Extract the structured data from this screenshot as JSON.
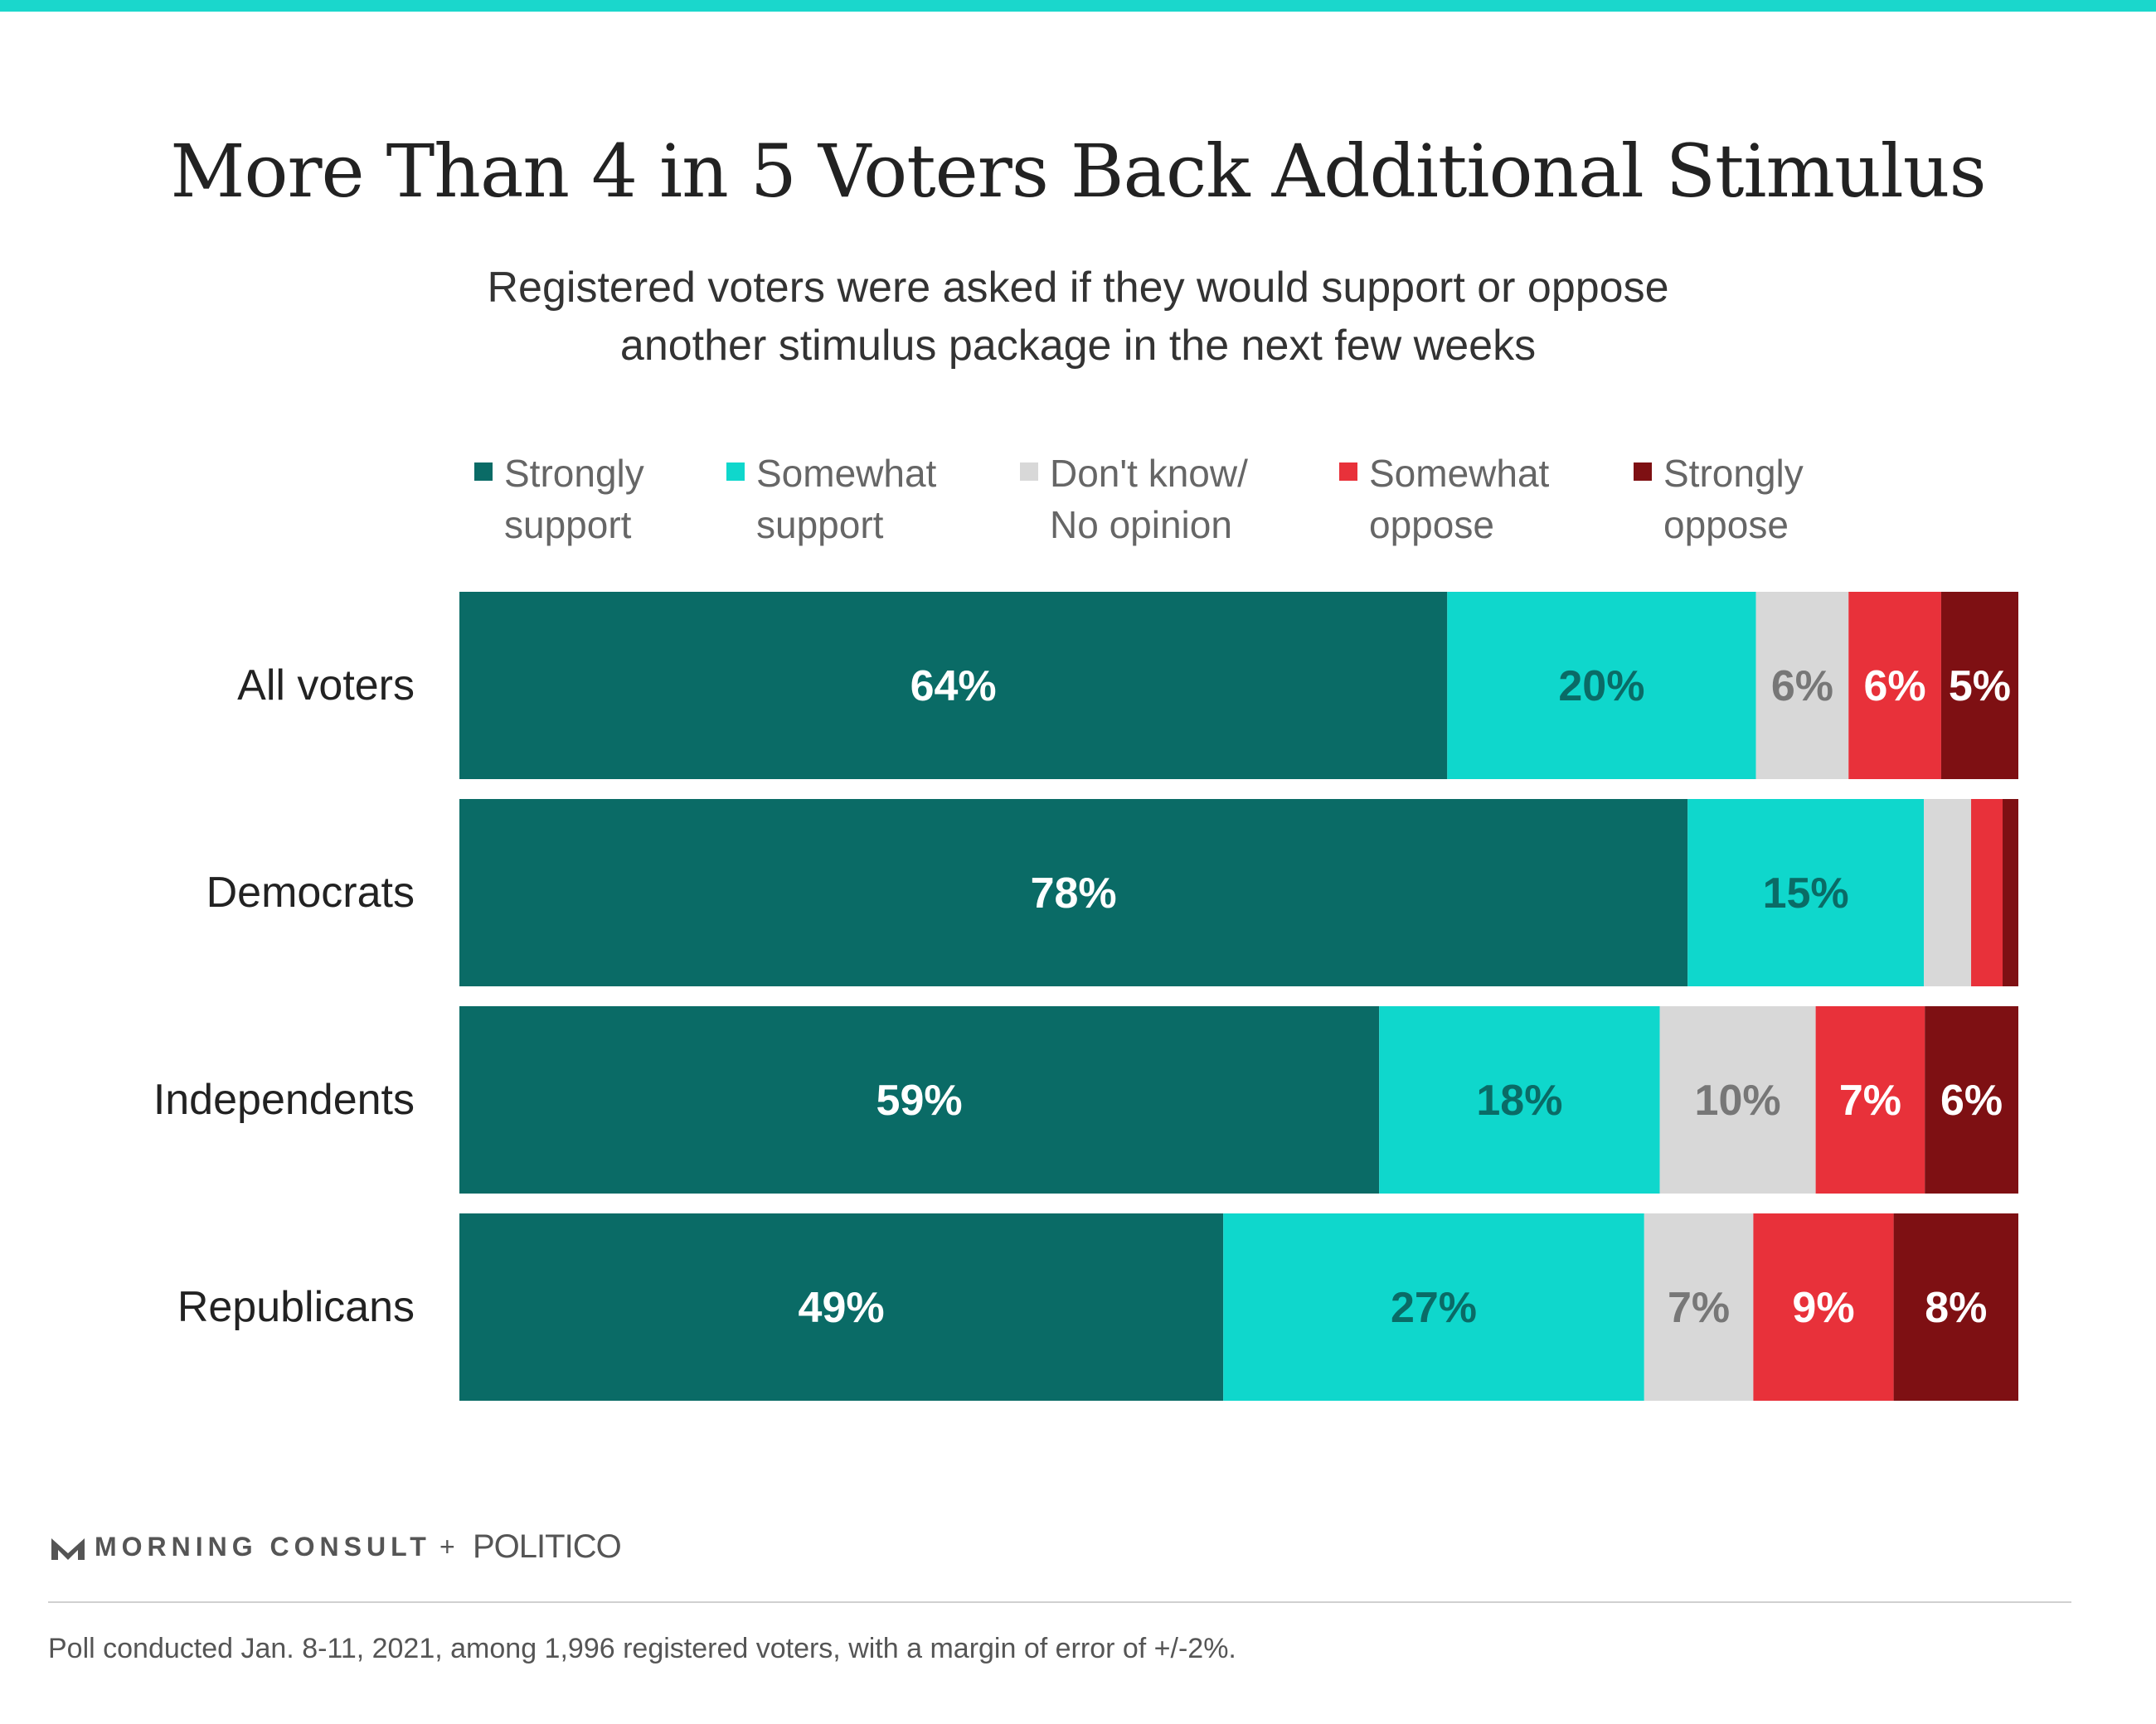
{
  "colors": {
    "top_bar": "#1ad7cc",
    "strongly_support": "#0a6b66",
    "somewhat_support": "#0fd7cc",
    "dont_know": "#d8d8d8",
    "somewhat_oppose": "#e8313a",
    "strongly_oppose": "#7e1013"
  },
  "title": "More Than 4 in 5 Voters Back Additional Stimulus",
  "subtitle": "Registered voters were asked if they would support or oppose\nanother stimulus package in the next few weeks",
  "legend": [
    {
      "label": "Strongly\nsupport",
      "color": "#0a6b66"
    },
    {
      "label": "Somewhat\nsupport",
      "color": "#0fd7cc"
    },
    {
      "label": "Don't know/\nNo opinion",
      "color": "#d8d8d8"
    },
    {
      "label": "Somewhat\noppose",
      "color": "#e8313a"
    },
    {
      "label": "Strongly\noppose",
      "color": "#7e1013"
    }
  ],
  "chart_data": {
    "type": "bar",
    "orientation": "horizontal",
    "stacked": true,
    "categories": [
      "All voters",
      "Democrats",
      "Independents",
      "Republicans"
    ],
    "series": [
      {
        "name": "Strongly support",
        "values": [
          64,
          78,
          59,
          49
        ],
        "labels": [
          "64%",
          "78%",
          "59%",
          "49%"
        ],
        "color": "#0a6b66",
        "label_color": "#ffffff"
      },
      {
        "name": "Somewhat support",
        "values": [
          20,
          15,
          18,
          27
        ],
        "labels": [
          "20%",
          "15%",
          "18%",
          "27%"
        ],
        "color": "#0fd7cc",
        "label_color": "#0a6b66"
      },
      {
        "name": "Don't know/No opinion",
        "values": [
          6,
          3,
          10,
          7
        ],
        "labels": [
          "6%",
          "",
          "10%",
          "7%"
        ],
        "color": "#d8d8d8",
        "label_color": "#777777"
      },
      {
        "name": "Somewhat oppose",
        "values": [
          6,
          2,
          7,
          9
        ],
        "labels": [
          "6%",
          "",
          "7%",
          "9%"
        ],
        "color": "#e8313a",
        "label_color": "#ffffff"
      },
      {
        "name": "Strongly oppose",
        "values": [
          5,
          1,
          6,
          8
        ],
        "labels": [
          "5%",
          "",
          "6%",
          "8%"
        ],
        "color": "#7e1013",
        "label_color": "#ffffff"
      }
    ]
  },
  "branding": {
    "morning_consult": "MORNING CONSULT",
    "plus": "+",
    "politico": "POLITICO"
  },
  "footnote": "Poll conducted Jan. 8-11, 2021, among 1,996 registered voters, with a margin of error of +/-2%."
}
